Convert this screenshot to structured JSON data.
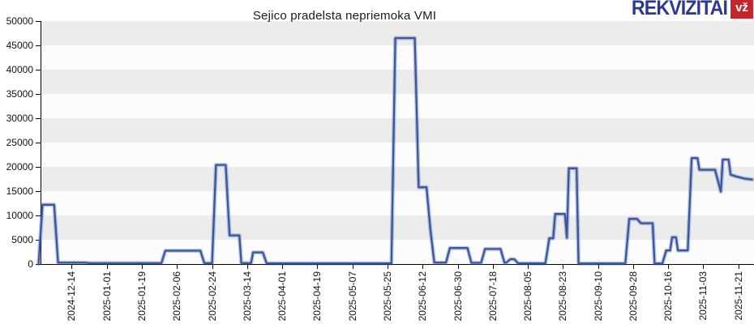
{
  "logo": {
    "brand": "REKVIZITAI",
    "badge": "vž"
  },
  "colors": {
    "line": "#3a56a2",
    "line_halo": "rgba(70,100,170,0.35)",
    "band_gray": "#ececec",
    "band_light": "#fcfcfc",
    "axis": "#000000",
    "tick_text": "#111111",
    "logo_blue": "#2b3990",
    "logo_red": "#c1272d"
  },
  "chart_data": {
    "type": "line",
    "title": "Sejico pradelsta nepriemoka VMI",
    "xlabel": "",
    "ylabel": "",
    "ylim": [
      0,
      50000
    ],
    "xlim": [
      "2024-11-28",
      "2025-11-29"
    ],
    "grid": "alternating horizontal bands, gray between odd 5000-steps",
    "legend": "none",
    "y_ticks": [
      0,
      5000,
      10000,
      15000,
      20000,
      25000,
      30000,
      35000,
      40000,
      45000,
      50000
    ],
    "x_ticks": [
      "2024-12-14",
      "2025-01-01",
      "2025-01-19",
      "2025-02-06",
      "2025-02-24",
      "2025-03-14",
      "2025-04-01",
      "2025-04-19",
      "2025-05-07",
      "2025-05-25",
      "2025-06-12",
      "2025-06-30",
      "2025-07-18",
      "2025-08-05",
      "2025-08-23",
      "2025-09-10",
      "2025-09-28",
      "2025-10-16",
      "2025-11-03",
      "2025-11-21"
    ],
    "points": [
      [
        "2024-11-27",
        0
      ],
      [
        "2024-11-29",
        12200
      ],
      [
        "2024-12-05",
        12200
      ],
      [
        "2024-12-07",
        280
      ],
      [
        "2024-12-21",
        280
      ],
      [
        "2024-12-23",
        180
      ],
      [
        "2025-01-29",
        180
      ],
      [
        "2025-01-31",
        2750
      ],
      [
        "2025-02-18",
        2750
      ],
      [
        "2025-02-20",
        180
      ],
      [
        "2025-02-24",
        180
      ],
      [
        "2025-02-26",
        20400
      ],
      [
        "2025-03-03",
        20400
      ],
      [
        "2025-03-05",
        5900
      ],
      [
        "2025-03-10",
        5900
      ],
      [
        "2025-03-11",
        180
      ],
      [
        "2025-03-16",
        180
      ],
      [
        "2025-03-17",
        2400
      ],
      [
        "2025-03-22",
        2400
      ],
      [
        "2025-03-24",
        150
      ],
      [
        "2025-05-27",
        150
      ],
      [
        "2025-05-29",
        46500
      ],
      [
        "2025-06-08",
        46500
      ],
      [
        "2025-06-10",
        15800
      ],
      [
        "2025-06-14",
        15800
      ],
      [
        "2025-06-16",
        7000
      ],
      [
        "2025-06-18",
        300
      ],
      [
        "2025-06-24",
        300
      ],
      [
        "2025-06-26",
        3300
      ],
      [
        "2025-07-05",
        3300
      ],
      [
        "2025-07-07",
        250
      ],
      [
        "2025-07-12",
        250
      ],
      [
        "2025-07-14",
        3100
      ],
      [
        "2025-07-22",
        3100
      ],
      [
        "2025-07-24",
        300
      ],
      [
        "2025-07-25",
        300
      ],
      [
        "2025-07-27",
        1000
      ],
      [
        "2025-07-29",
        1000
      ],
      [
        "2025-07-31",
        150
      ],
      [
        "2025-08-14",
        150
      ],
      [
        "2025-08-16",
        5300
      ],
      [
        "2025-08-18",
        5300
      ],
      [
        "2025-08-19",
        10300
      ],
      [
        "2025-08-24",
        10300
      ],
      [
        "2025-08-25",
        5400
      ],
      [
        "2025-08-26",
        19700
      ],
      [
        "2025-08-30",
        19700
      ],
      [
        "2025-08-31",
        120
      ],
      [
        "2025-09-24",
        120
      ],
      [
        "2025-09-26",
        9300
      ],
      [
        "2025-09-30",
        9300
      ],
      [
        "2025-10-02",
        8400
      ],
      [
        "2025-10-08",
        8400
      ],
      [
        "2025-10-09",
        120
      ],
      [
        "2025-10-13",
        120
      ],
      [
        "2025-10-15",
        2800
      ],
      [
        "2025-10-17",
        2800
      ],
      [
        "2025-10-18",
        5500
      ],
      [
        "2025-10-20",
        5500
      ],
      [
        "2025-10-21",
        2800
      ],
      [
        "2025-10-26",
        2800
      ],
      [
        "2025-10-28",
        21800
      ],
      [
        "2025-10-31",
        21800
      ],
      [
        "2025-11-01",
        19400
      ],
      [
        "2025-11-09",
        19400
      ],
      [
        "2025-11-12",
        14900
      ],
      [
        "2025-11-13",
        21500
      ],
      [
        "2025-11-16",
        21500
      ],
      [
        "2025-11-17",
        18400
      ],
      [
        "2025-11-20",
        18000
      ],
      [
        "2025-11-24",
        17600
      ],
      [
        "2025-11-28",
        17400
      ]
    ]
  }
}
